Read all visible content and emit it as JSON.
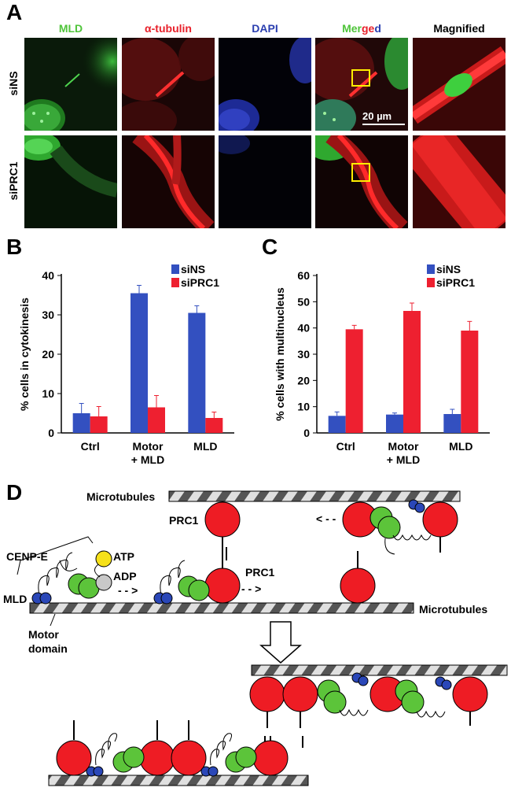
{
  "panels": {
    "a": "A",
    "b": "B",
    "c": "C",
    "d": "D"
  },
  "panel_a": {
    "columns": [
      {
        "label": "MLD",
        "color": "#4fc43a"
      },
      {
        "label": "α-tubulin",
        "color": "#e8202a"
      },
      {
        "label": "DAPI",
        "color": "#2b3fb0"
      },
      {
        "label": "Magnified",
        "color": "#000000"
      }
    ],
    "merged_parts": [
      "Mer",
      "ge",
      "d"
    ],
    "merged_colors": [
      "#4fc43a",
      "#e8202a",
      "#2b3fb0"
    ],
    "rows": [
      "siNS",
      "siPRC1"
    ],
    "scale_bar": "20 µm"
  },
  "chart_data": [
    {
      "type": "bar",
      "ylabel": "% cells in cytokinesis",
      "ylim": [
        0,
        40
      ],
      "yticks": [
        0,
        10,
        20,
        30,
        40
      ],
      "categories": [
        "Ctrl",
        "Motor\n+ MLD",
        "MLD"
      ],
      "category_lines": [
        [
          "Ctrl"
        ],
        [
          "Motor",
          "+ MLD"
        ],
        [
          "MLD"
        ]
      ],
      "legend_position": "top-right",
      "series": [
        {
          "name": "siNS",
          "color": "#3350c0",
          "values": [
            5,
            35.5,
            30.5
          ],
          "errors": [
            2.5,
            2,
            1.8
          ]
        },
        {
          "name": "siPRC1",
          "color": "#ee2030",
          "values": [
            4.2,
            6.5,
            3.8
          ],
          "errors": [
            2.5,
            3,
            1.5
          ]
        }
      ]
    },
    {
      "type": "bar",
      "ylabel": "% cells with multinucleus",
      "ylim": [
        0,
        60
      ],
      "yticks": [
        0,
        10,
        20,
        30,
        40,
        50,
        60
      ],
      "categories": [
        "Ctrl",
        "Motor\n+ MLD",
        "MLD"
      ],
      "category_lines": [
        [
          "Ctrl"
        ],
        [
          "Motor",
          "+ MLD"
        ],
        [
          "MLD"
        ]
      ],
      "legend_position": "top-right",
      "series": [
        {
          "name": "siNS",
          "color": "#3350c0",
          "values": [
            6.5,
            7,
            7.2
          ],
          "errors": [
            1.5,
            0.6,
            1.8
          ]
        },
        {
          "name": "siPRC1",
          "color": "#ee2030",
          "values": [
            39.5,
            46.5,
            39
          ],
          "errors": [
            1.5,
            3,
            3.5
          ]
        }
      ]
    }
  ],
  "diagram": {
    "labels": {
      "microtubules_top": "Microtubules",
      "microtubules_bottom": "Microtubules",
      "prc1_a": "PRC1",
      "prc1_b": "PRC1",
      "cenpe": "CENP-E",
      "atp": "ATP",
      "adp": "ADP",
      "mld": "MLD",
      "motor_1": "Motor",
      "motor_2": "domain"
    },
    "colors": {
      "prc1": "#ee1c24",
      "motor": "#5cc43a",
      "mld": "#2a47b8",
      "atp": "#f6e11a",
      "adp": "#c8c8c8",
      "mt_dark": "#555555",
      "mt_light": "#e0e0e0"
    }
  }
}
